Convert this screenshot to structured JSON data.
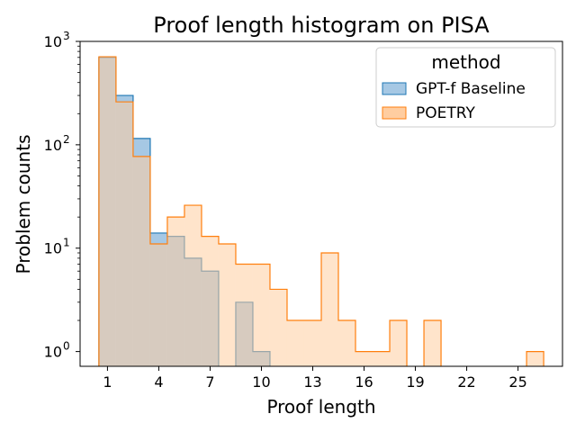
{
  "chart_data": {
    "type": "histogram",
    "title": "Proof length histogram on PISA",
    "xlabel": "Proof length",
    "ylabel": "Problem counts",
    "yscale": "log",
    "xlim": [
      -0.6,
      27.6
    ],
    "ylim": [
      0.72,
      1000
    ],
    "xticks": [
      1,
      4,
      7,
      10,
      13,
      16,
      19,
      22,
      25
    ],
    "yticks": [
      {
        "value": 1,
        "base": "10",
        "exp": "0"
      },
      {
        "value": 10,
        "base": "10",
        "exp": "1"
      },
      {
        "value": 100,
        "base": "10",
        "exp": "2"
      },
      {
        "value": 1000,
        "base": "10",
        "exp": "3"
      }
    ],
    "bin_width": 1,
    "legend": {
      "title": "method",
      "position": "top-right"
    },
    "series": [
      {
        "name": "GPT-f Baseline",
        "color": "#1f77b4",
        "fill": "#a6c8e4",
        "bins": [
          {
            "x": 1,
            "count": 700
          },
          {
            "x": 2,
            "count": 300
          },
          {
            "x": 3,
            "count": 115
          },
          {
            "x": 4,
            "count": 14
          },
          {
            "x": 5,
            "count": 13
          },
          {
            "x": 6,
            "count": 8
          },
          {
            "x": 7,
            "count": 6
          },
          {
            "x": 9,
            "count": 3
          },
          {
            "x": 10,
            "count": 1
          }
        ]
      },
      {
        "name": "POETRY",
        "color": "#ff7f0e",
        "fill": "#ffcda0",
        "bins": [
          {
            "x": 1,
            "count": 710
          },
          {
            "x": 2,
            "count": 260
          },
          {
            "x": 3,
            "count": 77
          },
          {
            "x": 4,
            "count": 11
          },
          {
            "x": 5,
            "count": 20
          },
          {
            "x": 6,
            "count": 26
          },
          {
            "x": 7,
            "count": 13
          },
          {
            "x": 8,
            "count": 11
          },
          {
            "x": 9,
            "count": 7
          },
          {
            "x": 10,
            "count": 7
          },
          {
            "x": 11,
            "count": 4
          },
          {
            "x": 12,
            "count": 2
          },
          {
            "x": 13,
            "count": 2
          },
          {
            "x": 14,
            "count": 9
          },
          {
            "x": 15,
            "count": 2
          },
          {
            "x": 16,
            "count": 1
          },
          {
            "x": 17,
            "count": 1
          },
          {
            "x": 18,
            "count": 2
          },
          {
            "x": 20,
            "count": 2
          },
          {
            "x": 26,
            "count": 1
          }
        ]
      }
    ]
  }
}
